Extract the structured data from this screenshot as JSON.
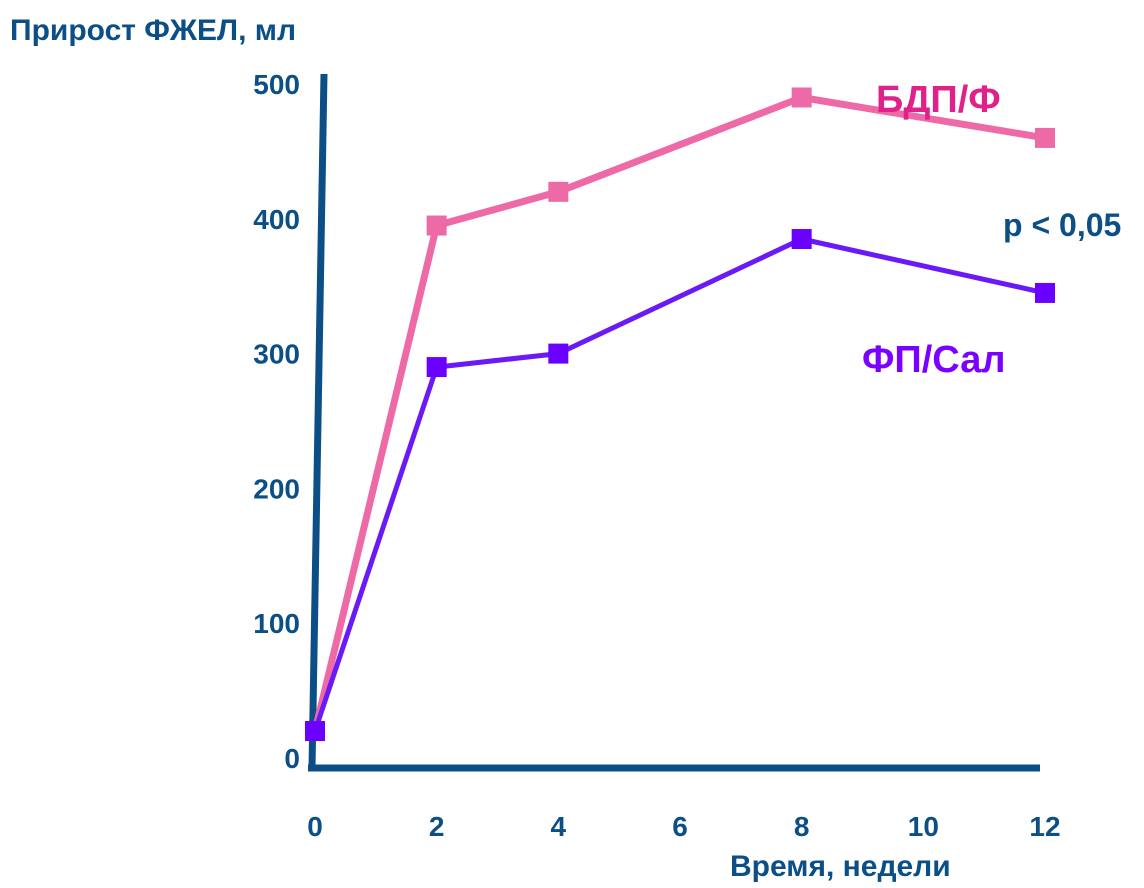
{
  "chart_data": {
    "type": "line",
    "title": "",
    "ylabel": "Прирост ФЖЕЛ, мл",
    "xlabel": "Время, недели",
    "x_ticks": [
      "0",
      "2",
      "4",
      "6",
      "8",
      "10",
      "12"
    ],
    "y_ticks": [
      "0",
      "100",
      "200",
      "300",
      "400",
      "500"
    ],
    "xlim": [
      0,
      12
    ],
    "ylim": [
      0,
      500
    ],
    "grid": false,
    "legend": "inline labels",
    "series": [
      {
        "name": "БДП/Ф",
        "color": "#ee6aa7",
        "marker_color": "#ee6aa7",
        "label_color": "#e0218a",
        "x": [
          0,
          2,
          4,
          8,
          12
        ],
        "y": [
          20,
          395,
          420,
          490,
          460
        ]
      },
      {
        "name": "ФП/Сал",
        "color": "#6a1bf5",
        "marker_color": "#6a00ff",
        "label_color": "#7a00ff",
        "x": [
          0,
          2,
          4,
          8,
          12
        ],
        "y": [
          20,
          290,
          300,
          385,
          345
        ]
      }
    ],
    "annotations": [
      {
        "text": "p < 0,05",
        "color": "#0b4f86"
      }
    ],
    "axis_color": "#0b4f86",
    "text_color": "#0b4f86"
  }
}
